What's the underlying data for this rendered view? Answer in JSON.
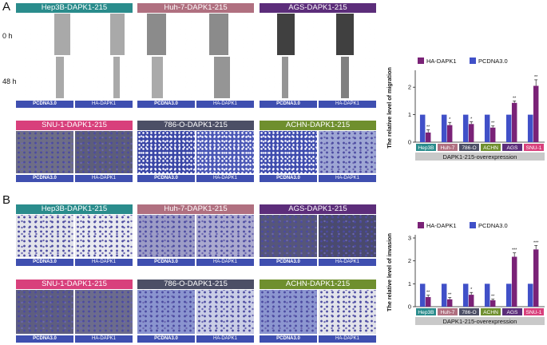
{
  "panelA": {
    "letter": "A",
    "row_labels": [
      "0 h",
      "48 h"
    ],
    "migration_headers": [
      {
        "label": "Hep3B-DAPK1-215",
        "color": "#2a8c8c"
      },
      {
        "label": "Huh-7-DAPK1-215",
        "color": "#b07080"
      },
      {
        "label": "AGS-DAPK1-215",
        "color": "#5c2d7a"
      }
    ],
    "transwell_headers": [
      {
        "label": "SNU-1-DAPK1-215",
        "color": "#d8407c"
      },
      {
        "label": "786-O-DAPK1-215",
        "color": "#4c4f66"
      },
      {
        "label": "ACHN-DAPK1-215",
        "color": "#6f8f2e"
      }
    ],
    "footer_labels": [
      "PCDNA3.0",
      "HA-DAPK1"
    ]
  },
  "panelB": {
    "letter": "B",
    "top_headers": [
      {
        "label": "Hep3B-DAPK1-215",
        "color": "#2a8c8c"
      },
      {
        "label": "Huh-7-DAPK1-215",
        "color": "#b07080"
      },
      {
        "label": "AGS-DAPK1-215",
        "color": "#5c2d7a"
      }
    ],
    "bottom_headers": [
      {
        "label": "SNU-1-DAPK1-215",
        "color": "#d8407c"
      },
      {
        "label": "786-O-DAPK1-215",
        "color": "#4c4f66"
      },
      {
        "label": "ACHN-DAPK1-215",
        "color": "#6f8f2e"
      }
    ],
    "footer_labels": [
      "PCDNA3.0",
      "HA-DAPK1"
    ]
  },
  "chart_data": [
    {
      "type": "bar",
      "ylabel": "The relative level of migration",
      "xlabel": "DAPK1-215-overexpression",
      "ylim": [
        0,
        2.5
      ],
      "yticks": [
        0,
        1,
        2
      ],
      "categories": [
        "Hep3B",
        "Huh-7",
        "786-O",
        "ACHN",
        "AGS",
        "SNU-1"
      ],
      "category_colors": [
        "#2a8c8c",
        "#b07080",
        "#4c4f66",
        "#6f8f2e",
        "#5c2d7a",
        "#d8407c"
      ],
      "legend": [
        "HA-DAPK1",
        "PCDNA3.0"
      ],
      "series": [
        {
          "name": "PCDNA3.0",
          "color": "#4050c8",
          "values": [
            1,
            1,
            1,
            1,
            1,
            1
          ]
        },
        {
          "name": "HA-DAPK1",
          "color": "#7a2277",
          "values": [
            0.35,
            0.62,
            0.66,
            0.53,
            1.43,
            2.05
          ],
          "errors": [
            0.1,
            0.1,
            0.08,
            0.06,
            0.07,
            0.22
          ],
          "significance": [
            "**",
            "*",
            "*",
            "**",
            "**",
            "**"
          ]
        }
      ]
    },
    {
      "type": "bar",
      "ylabel": "The relative level of invasion",
      "xlabel": "DAPK1-215-overexpression",
      "ylim": [
        0,
        3
      ],
      "yticks": [
        0,
        1,
        2,
        3
      ],
      "categories": [
        "Hep3B",
        "Huh-7",
        "786-O",
        "ACHN",
        "AGS",
        "SNU-1"
      ],
      "category_colors": [
        "#2a8c8c",
        "#b07080",
        "#4c4f66",
        "#6f8f2e",
        "#5c2d7a",
        "#d8407c"
      ],
      "legend": [
        "HA-DAPK1",
        "PCDNA3.0"
      ],
      "series": [
        {
          "name": "PCDNA3.0",
          "color": "#4050c8",
          "values": [
            1,
            1,
            1,
            1,
            1,
            1
          ]
        },
        {
          "name": "HA-DAPK1",
          "color": "#7a2277",
          "values": [
            0.42,
            0.32,
            0.52,
            0.28,
            2.18,
            2.5
          ],
          "errors": [
            0.08,
            0.08,
            0.1,
            0.05,
            0.17,
            0.17
          ],
          "significance": [
            "**",
            "**",
            "*",
            "**",
            "***",
            "***"
          ]
        }
      ]
    }
  ]
}
